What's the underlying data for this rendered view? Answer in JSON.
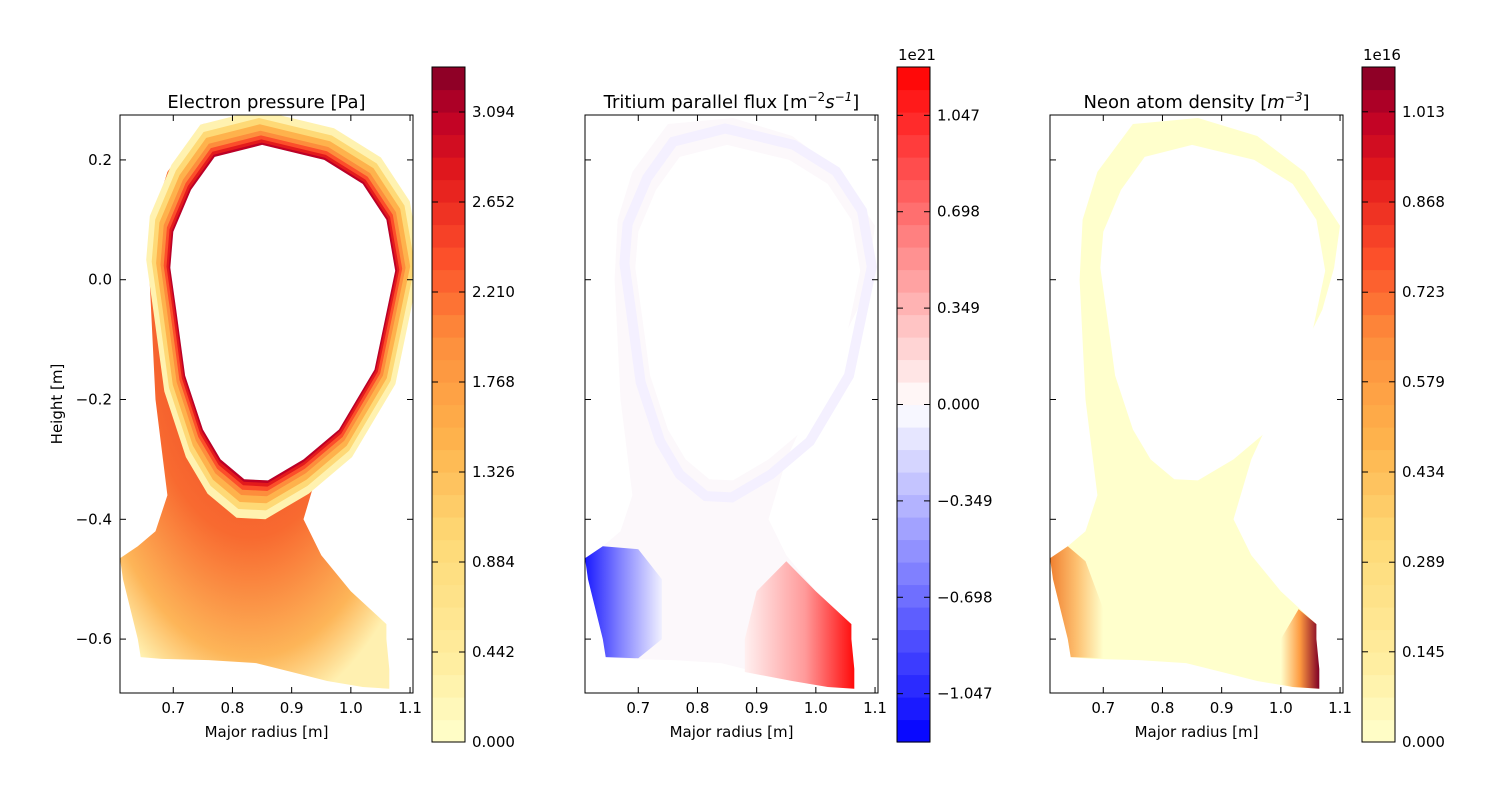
{
  "chart_data": [
    {
      "type": "heatmap",
      "title": "Electron pressure [Pa]",
      "xlabel": "Major radius [m]",
      "ylabel": "Height [m]",
      "xlim": [
        0.61,
        1.105
      ],
      "ylim": [
        -0.69,
        0.275
      ],
      "xticks": [
        "0.7",
        "0.8",
        "0.9",
        "1.0",
        "1.1"
      ],
      "yticks": [
        "0.2",
        "0.0",
        "−0.2",
        "−0.4",
        "−0.6"
      ],
      "colormap": "YlOrRd",
      "colorbar": {
        "range": [
          0.0,
          3.315
        ],
        "ticks": [
          "0.000",
          "0.442",
          "0.884",
          "1.326",
          "1.768",
          "2.210",
          "2.652",
          "3.094"
        ],
        "tick_values": [
          0.0,
          0.442,
          0.884,
          1.326,
          1.768,
          2.21,
          2.652,
          3.094
        ]
      }
    },
    {
      "type": "heatmap",
      "title": "Tritium parallel flux [m",
      "title_exponent": "−2",
      "title_unit": "s",
      "title_unit_exponent": "−1",
      "title_close": "]",
      "xlabel": "Major radius [m]",
      "ylabel": "",
      "xlim": [
        0.61,
        1.105
      ],
      "ylim": [
        -0.69,
        0.275
      ],
      "xticks": [
        "0.7",
        "0.8",
        "0.9",
        "1.0",
        "1.1"
      ],
      "colormap": "bwr",
      "colorbar": {
        "range": [
          -1.222,
          1.222
        ],
        "offset": "1e21",
        "ticks": [
          "−1.047",
          "−0.698",
          "−0.349",
          "0.000",
          "0.349",
          "0.698",
          "1.047"
        ],
        "tick_values": [
          -1.047,
          -0.698,
          -0.349,
          0.0,
          0.349,
          0.698,
          1.047
        ]
      }
    },
    {
      "type": "heatmap",
      "title": "Neon atom density [",
      "title_unit": "m",
      "title_unit_exponent": "−3",
      "title_close": "]",
      "xlabel": "Major radius [m]",
      "ylabel": "",
      "xlim": [
        0.61,
        1.105
      ],
      "ylim": [
        -0.69,
        0.275
      ],
      "xticks": [
        "0.7",
        "0.8",
        "0.9",
        "1.0",
        "1.1"
      ],
      "colormap": "YlOrRd",
      "colorbar": {
        "range": [
          0.0,
          1.085
        ],
        "offset": "1e16",
        "ticks": [
          "0.000",
          "0.145",
          "0.289",
          "0.434",
          "0.579",
          "0.723",
          "0.868",
          "1.013"
        ],
        "tick_values": [
          0.0,
          0.145,
          0.289,
          0.434,
          0.579,
          0.723,
          0.868,
          1.013
        ]
      }
    }
  ],
  "colors": {
    "ylorrd_low": "#ffffcc",
    "ylorrd_mid": "#fd8d3c",
    "ylorrd_high": "#800026",
    "bwr_low": "#0000ff",
    "bwr_mid": "#ffffff",
    "bwr_high": "#ff0000"
  }
}
